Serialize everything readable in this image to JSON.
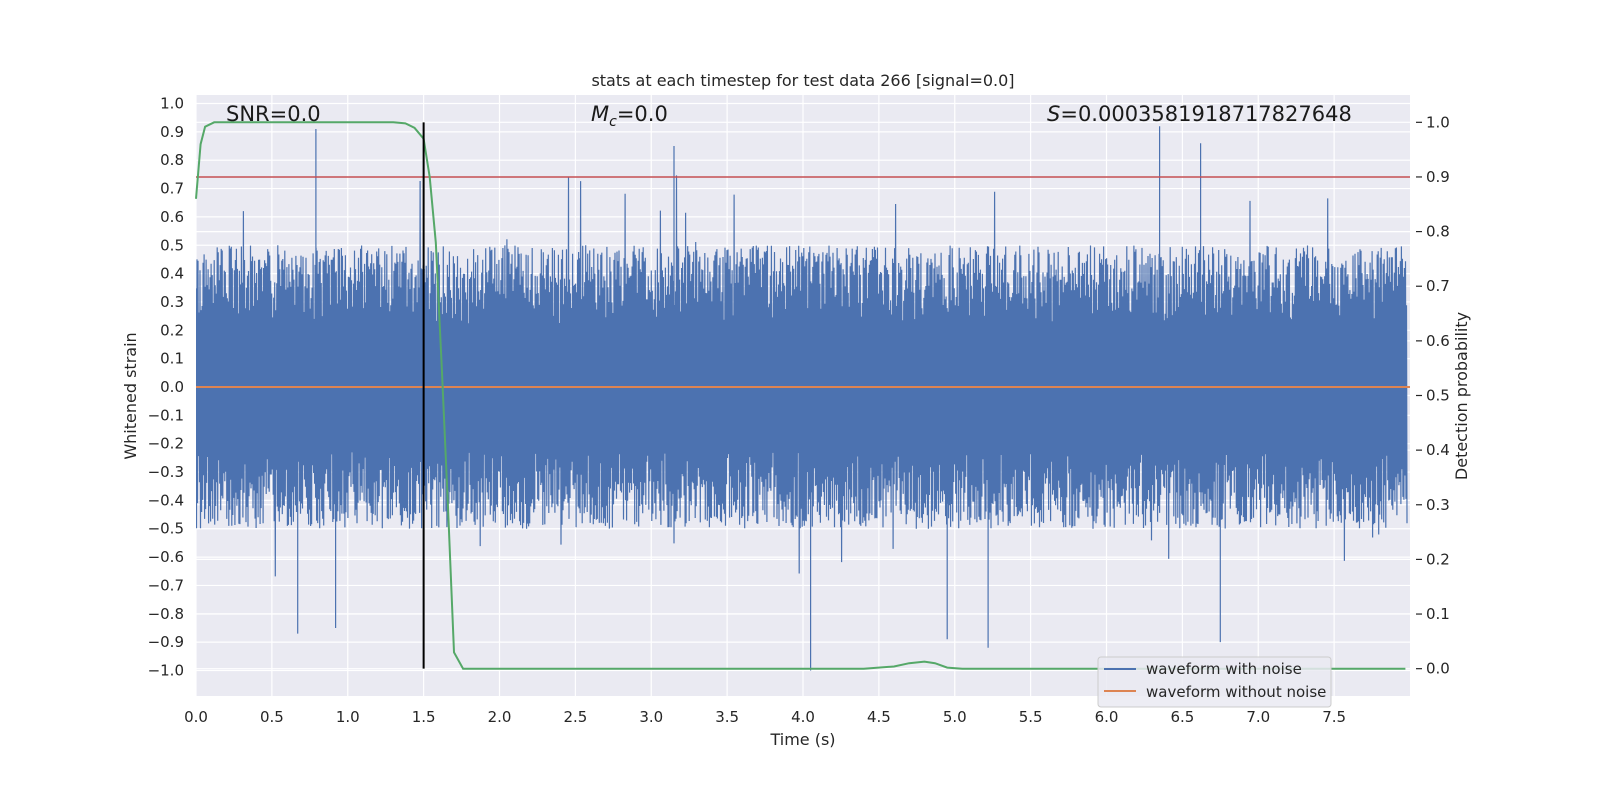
{
  "chart_data": {
    "type": "line",
    "title": "stats at each timestep for test data 266 [signal=0.0]",
    "xlabel": "Time (s)",
    "ylabel": "Whitened strain",
    "y2label": "Detection probability",
    "xlim": [
      0.0,
      8.0
    ],
    "ylim": [
      -1.09,
      1.03
    ],
    "y2lim": [
      -0.05,
      1.05
    ],
    "xticks": [
      0.0,
      0.5,
      1.0,
      1.5,
      2.0,
      2.5,
      3.0,
      3.5,
      4.0,
      4.5,
      5.0,
      5.5,
      6.0,
      6.5,
      7.0,
      7.5
    ],
    "xtick_labels": [
      "0.0",
      "0.5",
      "1.0",
      "1.5",
      "2.0",
      "2.5",
      "3.0",
      "3.5",
      "4.0",
      "4.5",
      "5.0",
      "5.5",
      "6.0",
      "6.5",
      "7.0",
      "7.5"
    ],
    "yticks": [
      1.0,
      0.9,
      0.8,
      0.7,
      0.6,
      0.5,
      0.4,
      0.3,
      0.2,
      0.1,
      0.0,
      -0.1,
      -0.2,
      -0.3,
      -0.4,
      -0.5,
      -0.6,
      -0.7,
      -0.8,
      -0.9,
      -1.0
    ],
    "ytick_labels": [
      "1.0",
      "0.9",
      "0.8",
      "0.7",
      "0.6",
      "0.5",
      "0.4",
      "0.3",
      "0.2",
      "0.1",
      "0.0",
      "−0.1",
      "−0.2",
      "−0.3",
      "−0.4",
      "−0.5",
      "−0.6",
      "−0.7",
      "−0.8",
      "−0.9",
      "−1.0"
    ],
    "y2ticks": [
      1.0,
      0.9,
      0.8,
      0.7,
      0.6,
      0.5,
      0.4,
      0.3,
      0.2,
      0.1,
      0.0
    ],
    "y2tick_labels": [
      "1.0",
      "0.9",
      "0.8",
      "0.7",
      "0.6",
      "0.5",
      "0.4",
      "0.3",
      "0.2",
      "0.1",
      "0.0"
    ],
    "grid": true,
    "legend_placement": "lower-right",
    "series": [
      {
        "name": "waveform with noise",
        "color": "#4c72b0",
        "description": "dense whitened noise, roughly within ±0.5 with spikes to about ±0.9",
        "noise_amplitude": 0.5,
        "spikes": [
          {
            "x": 0.79,
            "y": 0.91
          },
          {
            "x": 3.15,
            "y": 0.85
          },
          {
            "x": 6.35,
            "y": 0.92
          },
          {
            "x": 6.62,
            "y": 0.86
          },
          {
            "x": 0.67,
            "y": -0.87
          },
          {
            "x": 0.92,
            "y": -0.85
          },
          {
            "x": 4.05,
            "y": -1.0
          },
          {
            "x": 4.95,
            "y": -0.89
          },
          {
            "x": 5.22,
            "y": -0.92
          },
          {
            "x": 6.75,
            "y": -0.9
          }
        ]
      },
      {
        "name": "waveform without noise",
        "color": "#dd8452",
        "x": [
          0.0,
          8.0
        ],
        "y": [
          0.0,
          0.0
        ]
      },
      {
        "name": "detection probability",
        "color": "#55a868",
        "axis": "right",
        "x": [
          0.0,
          0.03,
          0.06,
          0.12,
          0.3,
          0.6,
          1.0,
          1.3,
          1.38,
          1.44,
          1.5,
          1.54,
          1.58,
          1.62,
          1.66,
          1.7,
          1.76,
          1.9,
          2.5,
          3.0,
          3.5,
          4.0,
          4.4,
          4.6,
          4.7,
          4.8,
          4.87,
          4.95,
          5.05,
          5.5,
          6.0,
          7.0,
          7.97
        ],
        "y": [
          0.86,
          0.96,
          0.992,
          1.0,
          1.0,
          1.0,
          1.0,
          1.0,
          0.998,
          0.99,
          0.97,
          0.9,
          0.78,
          0.55,
          0.3,
          0.03,
          0.0,
          0.0,
          0.0,
          0.0,
          0.0,
          0.0,
          0.0,
          0.004,
          0.01,
          0.013,
          0.01,
          0.002,
          0.0,
          0.0,
          0.0,
          0.0,
          0.0
        ]
      }
    ],
    "threshold": {
      "value": 0.9,
      "axis": "right",
      "color": "#c44e52"
    },
    "marker": {
      "x": 1.5,
      "color": "#000000"
    },
    "annotations": [
      {
        "name": "snr",
        "text": "SNR=0.0"
      },
      {
        "name": "mc",
        "prefix": "M",
        "sub": "c",
        "text": "=0.0"
      },
      {
        "name": "s",
        "prefix": "S",
        "text": "=0.0003581918717827648"
      }
    ],
    "legend": [
      "waveform with noise",
      "waveform without noise"
    ]
  }
}
